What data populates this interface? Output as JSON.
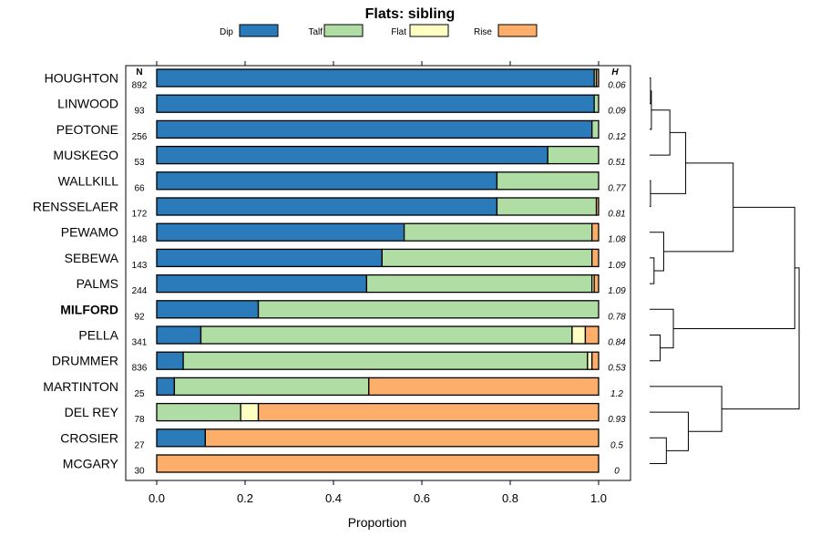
{
  "chart_data": {
    "type": "bar",
    "stacked": true,
    "orientation": "horizontal",
    "title": "Flats: sibling",
    "xlabel": "Proportion",
    "xlim": [
      0,
      1
    ],
    "xticks": [
      0.0,
      0.2,
      0.4,
      0.6,
      0.8,
      1.0
    ],
    "xtick_labels": [
      "0.0",
      "0.2",
      "0.4",
      "0.6",
      "0.8",
      "1.0"
    ],
    "n_header": "N",
    "h_header": "H",
    "highlight_category": "MILFORD",
    "series": [
      {
        "name": "Dip",
        "color": "#2b7bba",
        "values": [
          0.99,
          0.99,
          0.985,
          0.885,
          0.77,
          0.77,
          0.56,
          0.51,
          0.475,
          0.23,
          0.1,
          0.06,
          0.04,
          0.0,
          0.11,
          0.0
        ]
      },
      {
        "name": "Talf",
        "color": "#b0dda4",
        "values": [
          0.005,
          0.01,
          0.015,
          0.115,
          0.23,
          0.225,
          0.425,
          0.475,
          0.51,
          0.77,
          0.84,
          0.915,
          0.44,
          0.19,
          0.0,
          0.0
        ]
      },
      {
        "name": "Flat",
        "color": "#ffffc3",
        "values": [
          0.0,
          0.0,
          0.0,
          0.0,
          0.0,
          0.0,
          0.0,
          0.0,
          0.005,
          0.0,
          0.03,
          0.01,
          0.0,
          0.04,
          0.0,
          0.0
        ]
      },
      {
        "name": "Rise",
        "color": "#fdae6a",
        "values": [
          0.005,
          0.0,
          0.0,
          0.0,
          0.0,
          0.005,
          0.015,
          0.015,
          0.01,
          0.0,
          0.03,
          0.015,
          0.52,
          0.77,
          0.89,
          1.0
        ]
      }
    ],
    "categories": [
      "HOUGHTON",
      "LINWOOD",
      "PEOTONE",
      "MUSKEGO",
      "WALLKILL",
      "RENSSELAER",
      "PEWAMO",
      "SEBEWA",
      "PALMS",
      "MILFORD",
      "PELLA",
      "DRUMMER",
      "MARTINTON",
      "DEL REY",
      "CROSIER",
      "MCGARY"
    ],
    "n": [
      "892",
      "93",
      "256",
      "53",
      "66",
      "172",
      "148",
      "143",
      "244",
      "92",
      "341",
      "836",
      "25",
      "78",
      "27",
      "30"
    ],
    "h": [
      "0.06",
      "0.09",
      "0.12",
      "0.51",
      "0.77",
      "0.81",
      "1.08",
      "1.09",
      "1.09",
      "0.78",
      "0.84",
      "0.53",
      "1.2",
      "0.93",
      "0.5",
      "0"
    ],
    "dendrogram": {
      "type": "hierarchical-clustering",
      "merges": [
        {
          "id": "c1",
          "left": "HOUGHTON",
          "right": "LINWOOD",
          "height": 0.01
        },
        {
          "id": "c2",
          "left": "c1",
          "right": "PEOTONE",
          "height": 0.02
        },
        {
          "id": "c3",
          "left": "c2",
          "right": "MUSKEGO",
          "height": 0.23
        },
        {
          "id": "c4",
          "left": "WALLKILL",
          "right": "RENSSELAER",
          "height": 0.01
        },
        {
          "id": "c5",
          "left": "c3",
          "right": "c4",
          "height": 0.41
        },
        {
          "id": "c6",
          "left": "SEBEWA",
          "right": "PALMS",
          "height": 0.05
        },
        {
          "id": "c7",
          "left": "PEWAMO",
          "right": "c6",
          "height": 0.16
        },
        {
          "id": "c8",
          "left": "c5",
          "right": "c7",
          "height": 0.95
        },
        {
          "id": "c9",
          "left": "PELLA",
          "right": "DRUMMER",
          "height": 0.12
        },
        {
          "id": "c10",
          "left": "MILFORD",
          "right": "c9",
          "height": 0.27
        },
        {
          "id": "c11",
          "left": "c8",
          "right": "c10",
          "height": 1.65
        },
        {
          "id": "c12",
          "left": "CROSIER",
          "right": "MCGARY",
          "height": 0.19
        },
        {
          "id": "c13",
          "left": "DEL REY",
          "right": "c12",
          "height": 0.44
        },
        {
          "id": "c14",
          "left": "MARTINTON",
          "right": "c13",
          "height": 0.82
        },
        {
          "id": "c15",
          "left": "c11",
          "right": "c14",
          "height": 1.7
        }
      ],
      "max_height": 1.72
    }
  }
}
